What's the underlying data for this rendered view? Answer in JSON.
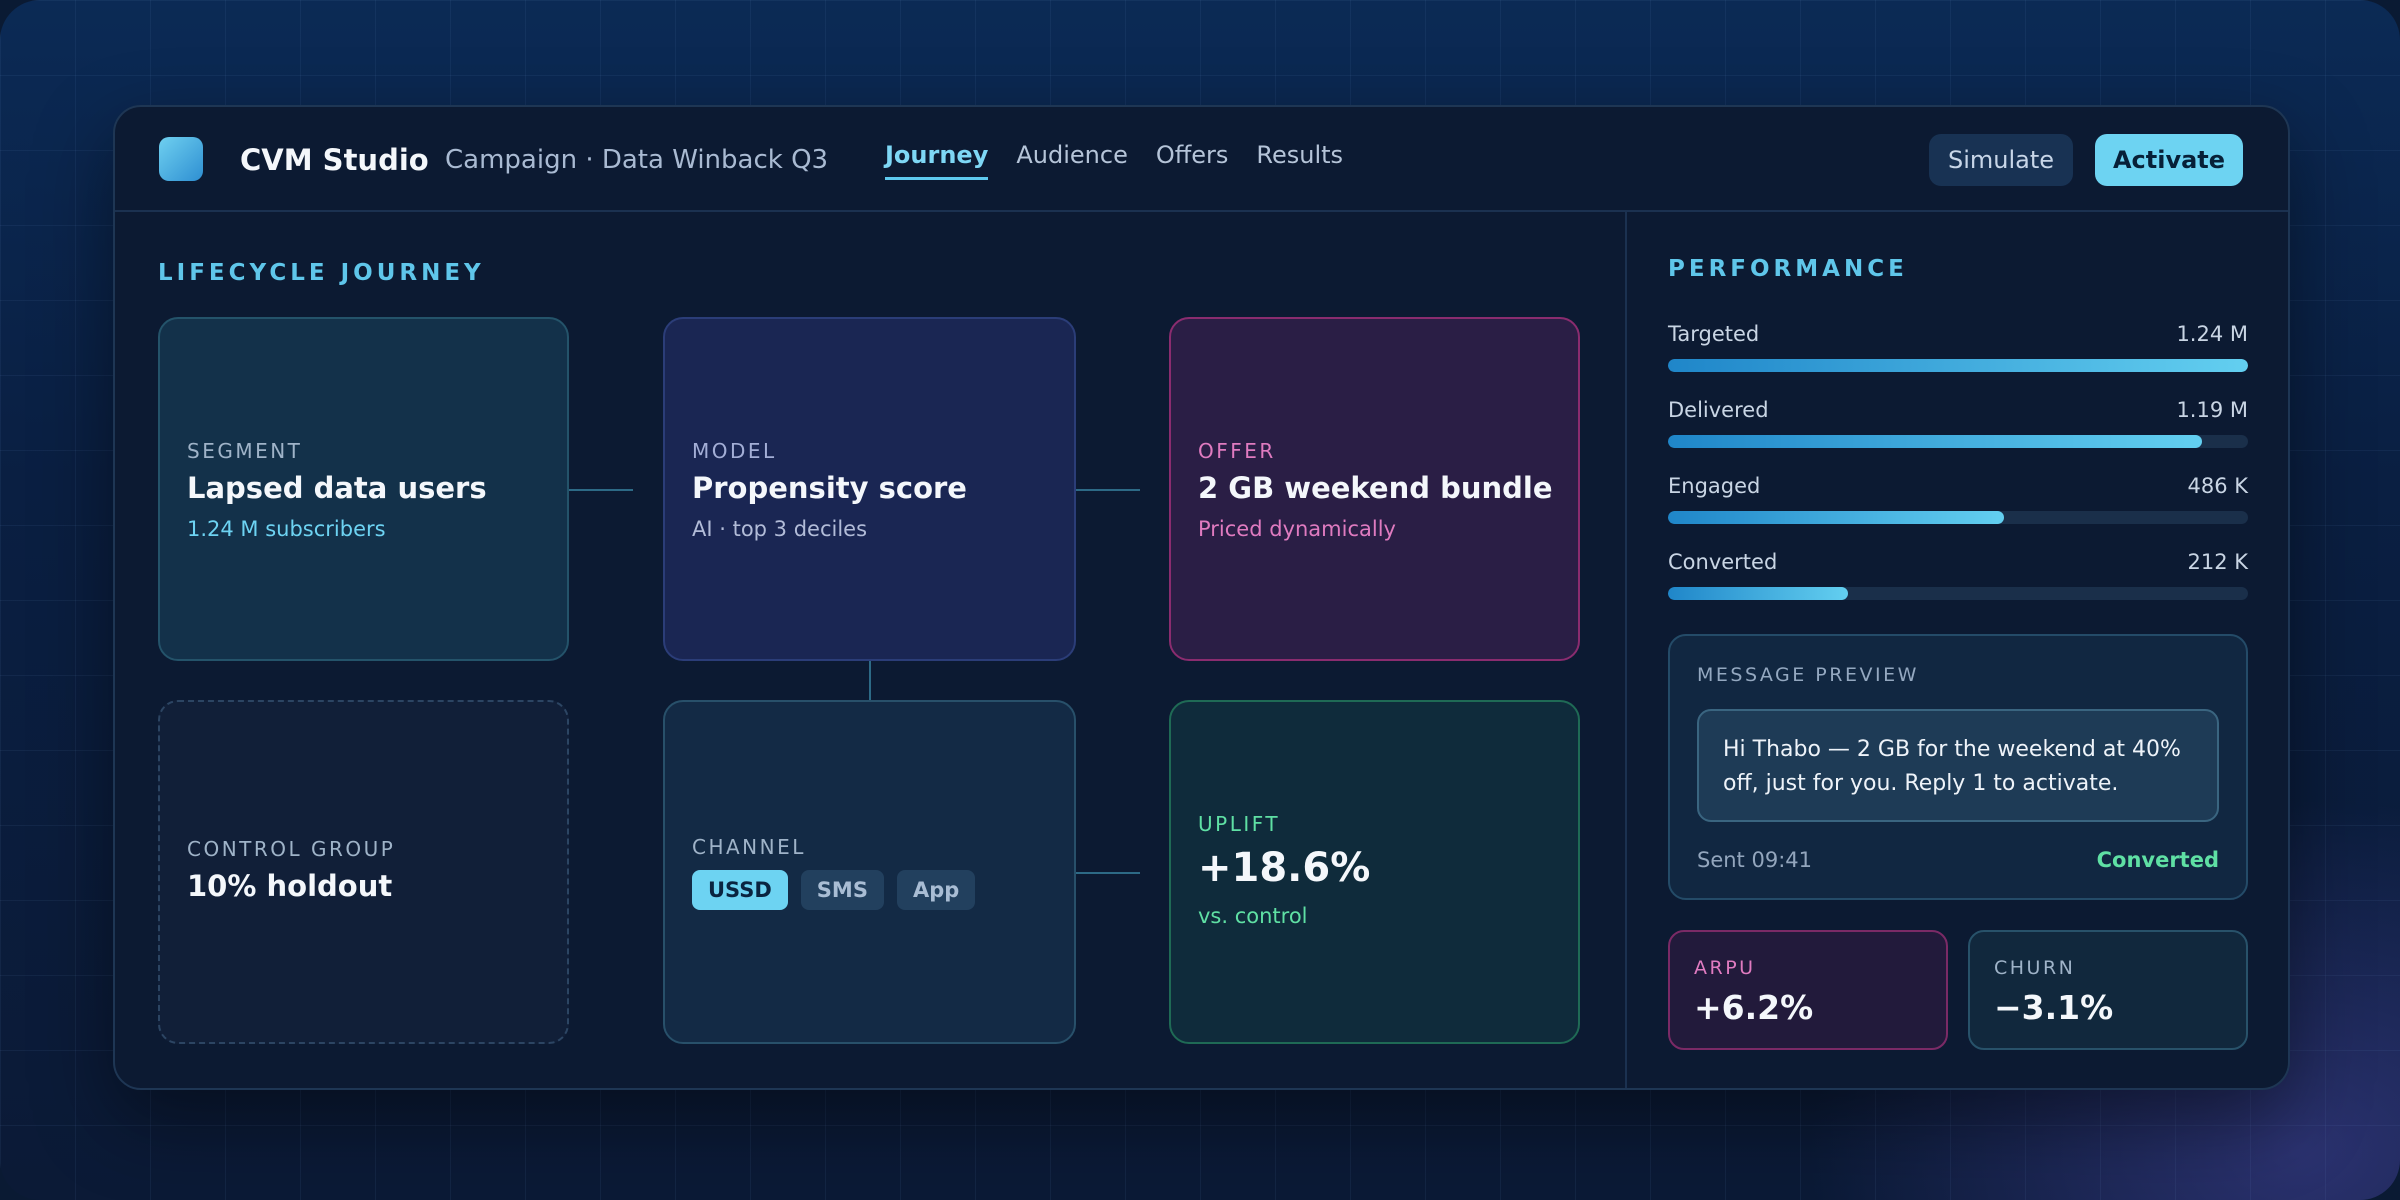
{
  "app": {
    "name": "CVM Studio",
    "campaign": "Campaign · Data Winback Q3"
  },
  "tabs": [
    {
      "label": "Journey",
      "active": true
    },
    {
      "label": "Audience",
      "active": false
    },
    {
      "label": "Offers",
      "active": false
    },
    {
      "label": "Results",
      "active": false
    }
  ],
  "actions": {
    "simulate": "Simulate",
    "activate": "Activate"
  },
  "journey": {
    "title": "LIFECYCLE JOURNEY",
    "segment": {
      "kicker": "SEGMENT",
      "title": "Lapsed data users",
      "sub": "1.24 M subscribers"
    },
    "model": {
      "kicker": "MODEL",
      "title": "Propensity score",
      "sub": "AI · top 3 deciles"
    },
    "offer": {
      "kicker": "OFFER",
      "title": "2 GB weekend bundle",
      "sub": "Priced dynamically"
    },
    "control": {
      "kicker": "CONTROL GROUP",
      "title": "10% holdout"
    },
    "channel": {
      "kicker": "CHANNEL",
      "chips": [
        {
          "label": "USSD",
          "selected": true
        },
        {
          "label": "SMS",
          "selected": false
        },
        {
          "label": "App",
          "selected": false
        }
      ]
    },
    "uplift": {
      "kicker": "UPLIFT",
      "value": "+18.6%",
      "sub": "vs. control"
    }
  },
  "performance": {
    "title": "PERFORMANCE",
    "metrics": [
      {
        "label": "Targeted",
        "value": "1.24 M",
        "fraction": 1.0
      },
      {
        "label": "Delivered",
        "value": "1.19 M",
        "fraction": 0.92
      },
      {
        "label": "Engaged",
        "value": "486 K",
        "fraction": 0.58
      },
      {
        "label": "Converted",
        "value": "212 K",
        "fraction": 0.31
      }
    ],
    "preview": {
      "kicker": "MESSAGE PREVIEW",
      "message": "Hi Thabo — 2 GB for the weekend at 40% off, just for you. Reply 1 to activate.",
      "sent": "Sent 09:41",
      "status": "Converted"
    },
    "kpis": {
      "arpu": {
        "label": "ARPU",
        "value": "+6.2%"
      },
      "churn": {
        "label": "CHURN",
        "value": "−3.1%"
      }
    }
  },
  "colors": {
    "accent": "#6dd3f2",
    "offer": "#e07bc0",
    "success": "#5fe0a4",
    "arpu": "#e07bc0"
  }
}
